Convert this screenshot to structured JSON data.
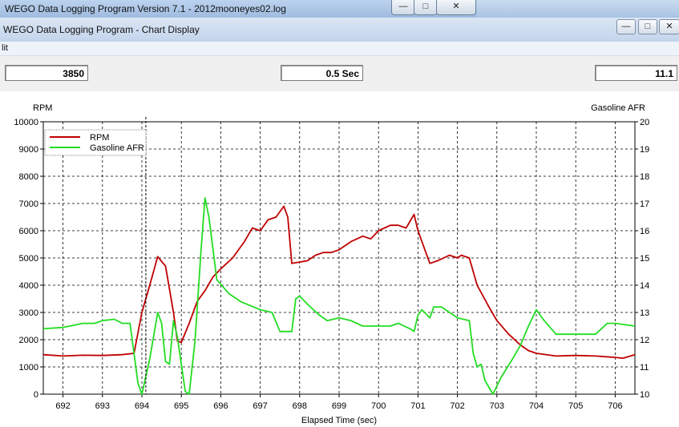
{
  "window": {
    "title": "WEGO Data Logging Program Version 7.1 - 2012mooneyes02.log",
    "minimize_icon": "minimize-icon",
    "maximize_icon": "maximize-icon",
    "close_icon": "close-icon"
  },
  "chart_window": {
    "title": "WEGO Data Logging Program - Chart Display"
  },
  "menu": {
    "item": "lit"
  },
  "toolbar": {
    "readout_left": "3850",
    "readout_middle": "0.5 Sec",
    "readout_right": "11.1"
  },
  "chart_data": {
    "type": "line",
    "xlabel": "Elapsed Time (sec)",
    "ylabel_left": "RPM",
    "ylabel_right": "Gasoline AFR",
    "xlim": [
      691.5,
      706.5
    ],
    "ylim_left": [
      0,
      10000
    ],
    "ylim_right": [
      10,
      20
    ],
    "x_ticks": [
      692,
      693,
      694,
      695,
      696,
      697,
      698,
      699,
      700,
      701,
      702,
      703,
      704,
      705,
      706
    ],
    "y_ticks_left": [
      0,
      1000,
      2000,
      3000,
      4000,
      5000,
      6000,
      7000,
      8000,
      9000,
      10000
    ],
    "y_ticks_right": [
      10,
      11,
      12,
      13,
      14,
      15,
      16,
      17,
      18,
      19,
      20
    ],
    "grid": true,
    "grid_style": "dashed",
    "legend_position": "top-left",
    "cursor_x": 694.1,
    "series": [
      {
        "name": "RPM",
        "axis": "left",
        "color": "#c00000",
        "points": [
          [
            691.5,
            1450
          ],
          [
            692,
            1400
          ],
          [
            692.5,
            1430
          ],
          [
            693,
            1420
          ],
          [
            693.5,
            1450
          ],
          [
            693.8,
            1500
          ],
          [
            694,
            3000
          ],
          [
            694.2,
            4000
          ],
          [
            694.4,
            5050
          ],
          [
            694.6,
            4700
          ],
          [
            694.8,
            3000
          ],
          [
            694.9,
            1950
          ],
          [
            695.0,
            1900
          ],
          [
            695.2,
            2600
          ],
          [
            695.4,
            3400
          ],
          [
            695.6,
            3800
          ],
          [
            695.8,
            4300
          ],
          [
            696.0,
            4600
          ],
          [
            696.3,
            5000
          ],
          [
            696.6,
            5600
          ],
          [
            696.8,
            6100
          ],
          [
            697.0,
            6000
          ],
          [
            697.2,
            6400
          ],
          [
            697.4,
            6500
          ],
          [
            697.6,
            6900
          ],
          [
            697.7,
            6500
          ],
          [
            697.8,
            4800
          ],
          [
            698.0,
            4850
          ],
          [
            698.2,
            4900
          ],
          [
            698.4,
            5100
          ],
          [
            698.6,
            5200
          ],
          [
            698.8,
            5200
          ],
          [
            699.0,
            5300
          ],
          [
            699.3,
            5600
          ],
          [
            699.6,
            5800
          ],
          [
            699.8,
            5700
          ],
          [
            700.0,
            6000
          ],
          [
            700.3,
            6200
          ],
          [
            700.5,
            6200
          ],
          [
            700.7,
            6100
          ],
          [
            700.9,
            6600
          ],
          [
            701.0,
            6000
          ],
          [
            701.2,
            5200
          ],
          [
            701.3,
            4800
          ],
          [
            701.5,
            4900
          ],
          [
            701.8,
            5100
          ],
          [
            702.0,
            5000
          ],
          [
            702.1,
            5100
          ],
          [
            702.3,
            5000
          ],
          [
            702.5,
            4000
          ],
          [
            702.8,
            3200
          ],
          [
            703.0,
            2700
          ],
          [
            703.3,
            2200
          ],
          [
            703.6,
            1800
          ],
          [
            703.8,
            1600
          ],
          [
            704.0,
            1500
          ],
          [
            704.5,
            1400
          ],
          [
            705.0,
            1420
          ],
          [
            705.5,
            1400
          ],
          [
            706.0,
            1350
          ],
          [
            706.2,
            1320
          ],
          [
            706.5,
            1450
          ]
        ]
      },
      {
        "name": "Gasoline AFR",
        "axis": "right",
        "color": "#22dd22",
        "points": [
          [
            691.5,
            12.4
          ],
          [
            692,
            12.45
          ],
          [
            692.5,
            12.6
          ],
          [
            692.8,
            12.6
          ],
          [
            693.0,
            12.7
          ],
          [
            693.3,
            12.75
          ],
          [
            693.5,
            12.6
          ],
          [
            693.7,
            12.6
          ],
          [
            693.9,
            10.4
          ],
          [
            694.0,
            10.0
          ],
          [
            694.2,
            11.3
          ],
          [
            694.4,
            13.0
          ],
          [
            694.5,
            12.6
          ],
          [
            694.6,
            11.2
          ],
          [
            694.7,
            11.1
          ],
          [
            694.8,
            12.7
          ],
          [
            694.9,
            12.1
          ],
          [
            695.1,
            10.1
          ],
          [
            695.2,
            10.0
          ],
          [
            695.35,
            12.0
          ],
          [
            695.5,
            15.3
          ],
          [
            695.6,
            17.2
          ],
          [
            695.7,
            16.5
          ],
          [
            695.9,
            14.2
          ],
          [
            696.2,
            13.7
          ],
          [
            696.5,
            13.4
          ],
          [
            697.0,
            13.1
          ],
          [
            697.3,
            13.0
          ],
          [
            697.5,
            12.3
          ],
          [
            697.8,
            12.3
          ],
          [
            697.9,
            13.5
          ],
          [
            698.0,
            13.6
          ],
          [
            698.2,
            13.3
          ],
          [
            698.5,
            12.9
          ],
          [
            698.7,
            12.7
          ],
          [
            699.0,
            12.8
          ],
          [
            699.3,
            12.7
          ],
          [
            699.6,
            12.5
          ],
          [
            700.0,
            12.5
          ],
          [
            700.3,
            12.5
          ],
          [
            700.5,
            12.6
          ],
          [
            700.8,
            12.4
          ],
          [
            700.9,
            12.3
          ],
          [
            701.0,
            12.9
          ],
          [
            701.1,
            13.1
          ],
          [
            701.3,
            12.8
          ],
          [
            701.4,
            13.2
          ],
          [
            701.6,
            13.2
          ],
          [
            701.8,
            13.0
          ],
          [
            702.0,
            12.8
          ],
          [
            702.3,
            12.7
          ],
          [
            702.4,
            11.5
          ],
          [
            702.5,
            11.0
          ],
          [
            702.6,
            11.1
          ],
          [
            702.7,
            10.5
          ],
          [
            702.9,
            10.0
          ],
          [
            703.1,
            10.6
          ],
          [
            703.4,
            11.3
          ],
          [
            703.6,
            11.8
          ],
          [
            703.8,
            12.5
          ],
          [
            704.0,
            13.1
          ],
          [
            704.2,
            12.7
          ],
          [
            704.5,
            12.2
          ],
          [
            705.0,
            12.2
          ],
          [
            705.5,
            12.2
          ],
          [
            705.8,
            12.6
          ],
          [
            706.0,
            12.6
          ],
          [
            706.5,
            12.5
          ]
        ]
      }
    ]
  }
}
